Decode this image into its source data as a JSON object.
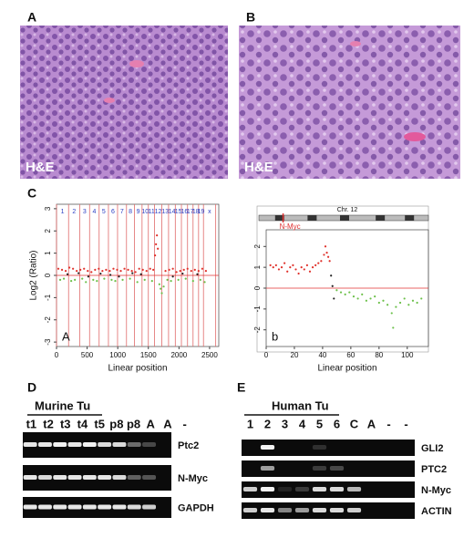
{
  "panels": {
    "A": {
      "label": "A",
      "caption": "H&E"
    },
    "B": {
      "label": "B",
      "caption": "H&E"
    },
    "D": {
      "label": "D",
      "group": "Murine Tu",
      "lanes": [
        "t1",
        "t2",
        "t3",
        "t4",
        "t5",
        "p8",
        "p8",
        "A",
        "A",
        "-"
      ],
      "rows": [
        {
          "label": "Ptc2",
          "intensity": [
            0.9,
            0.9,
            0.95,
            0.9,
            0.95,
            0.85,
            0.85,
            0.4,
            0.25,
            0
          ]
        },
        {
          "label": "N-Myc",
          "intensity": [
            0.9,
            0.85,
            0.9,
            0.9,
            0.9,
            0.9,
            0.85,
            0.35,
            0.3,
            0
          ]
        },
        {
          "label": "GAPDH",
          "intensity": [
            0.9,
            0.9,
            0.9,
            0.9,
            0.9,
            0.9,
            0.9,
            0.85,
            0.8,
            0
          ]
        }
      ]
    },
    "E": {
      "label": "E",
      "group": "Human Tu",
      "lanes": [
        "1",
        "2",
        "3",
        "4",
        "5",
        "6",
        "C",
        "A",
        "-",
        "-"
      ],
      "rows": [
        {
          "label": "GLI2",
          "intensity": [
            0,
            0.95,
            0,
            0,
            0.15,
            0,
            0,
            0,
            0,
            0
          ]
        },
        {
          "label": "PTC2",
          "intensity": [
            0,
            0.6,
            0,
            0,
            0.2,
            0.25,
            0,
            0,
            0,
            0
          ]
        },
        {
          "label": "N-Myc",
          "intensity": [
            0.8,
            0.95,
            0.1,
            0.2,
            0.85,
            0.85,
            0.7,
            0,
            0,
            0
          ]
        },
        {
          "label": "ACTIN",
          "intensity": [
            0.8,
            0.9,
            0.5,
            0.6,
            0.85,
            0.85,
            0.8,
            0,
            0,
            0
          ]
        }
      ]
    }
  },
  "chart_data": [
    {
      "type": "scatter",
      "panel_label": "C",
      "corner_label": "A",
      "ylabel": "Log2 (Ratio)",
      "xlabel": "Linear position",
      "xlim": [
        0,
        2650
      ],
      "ylim": [
        -3.2,
        3.2
      ],
      "xticks": [
        0,
        500,
        1000,
        1500,
        2000,
        2500
      ],
      "yticks": [
        -3,
        -2,
        -1,
        0,
        1,
        2,
        3
      ],
      "regions": {
        "labels": [
          "1",
          "2",
          "3",
          "4",
          "5",
          "6",
          "7",
          "8",
          "9",
          "10",
          "11",
          "12",
          "13",
          "14",
          "15",
          "16",
          "17",
          "18",
          "19",
          "x"
        ],
        "bounds": [
          0,
          197,
          378,
          540,
          696,
          848,
          997,
          1143,
          1272,
          1397,
          1500,
          1600,
          1720,
          1830,
          1940,
          2040,
          2140,
          2230,
          2320,
          2400,
          2600
        ],
        "label_color": "#2b3fc4",
        "line_color": "#e06a6a"
      },
      "series": [
        {
          "color": "#e0302a",
          "x": [
            30,
            90,
            150,
            210,
            270,
            330,
            390,
            450,
            510,
            570,
            630,
            690,
            750,
            810,
            870,
            930,
            990,
            1050,
            1110,
            1170,
            1230,
            1290,
            1350,
            1410,
            1470,
            1530,
            1580,
            1610,
            1625,
            1640,
            1655,
            1780,
            1840,
            1900,
            1960,
            2020,
            2080,
            2140,
            2200,
            2260,
            2320,
            2380,
            2440
          ],
          "values": [
            0.3,
            0.25,
            0.2,
            0.35,
            0.3,
            0.2,
            0.25,
            0.3,
            0.2,
            0.15,
            0.25,
            0.3,
            0.2,
            0.25,
            0.2,
            0.3,
            0.25,
            0.2,
            0.3,
            0.25,
            0.2,
            0.15,
            0.3,
            0.25,
            0.2,
            0.3,
            0.25,
            0.9,
            1.4,
            1.8,
            1.2,
            0.2,
            0.25,
            0.3,
            0.15,
            0.2,
            0.25,
            0.3,
            0.2,
            0.25,
            0.2,
            0.3,
            0.2
          ]
        },
        {
          "color": "#6cc04a",
          "x": [
            60,
            120,
            240,
            300,
            420,
            480,
            600,
            660,
            780,
            900,
            960,
            1080,
            1200,
            1320,
            1440,
            1560,
            1680,
            1700,
            1720,
            1750,
            1810,
            1870,
            1990,
            2110,
            2230,
            2350,
            2420
          ],
          "values": [
            -0.2,
            -0.15,
            -0.25,
            -0.2,
            -0.15,
            -0.3,
            -0.2,
            -0.25,
            -0.15,
            -0.2,
            -0.25,
            -0.2,
            -0.15,
            -0.3,
            -0.2,
            -0.25,
            -0.4,
            -0.6,
            -0.8,
            -0.5,
            -0.2,
            -0.25,
            -0.2,
            -0.15,
            -0.25,
            -0.2,
            -0.3
          ]
        },
        {
          "color": "#222222",
          "x": [
            180,
            360,
            520,
            720,
            880,
            1020,
            1240,
            1380,
            1900,
            2060,
            2300
          ],
          "values": [
            0.05,
            0.1,
            -0.05,
            0.08,
            0.02,
            -0.05,
            0.1,
            0.05,
            -0.05,
            0.08,
            0.05
          ]
        }
      ]
    },
    {
      "type": "scatter",
      "title": "Chr. 12",
      "annotation": {
        "text": "N-Myc",
        "x": 12
      },
      "corner_label": "b",
      "xlabel": "Linear position",
      "xlim": [
        0,
        115
      ],
      "ylim": [
        -2.8,
        2.8
      ],
      "xticks": [
        0,
        20,
        40,
        60,
        80,
        100
      ],
      "yticks": [
        -2,
        -1,
        0,
        1,
        2
      ],
      "series": [
        {
          "color": "#e0302a",
          "x": [
            3,
            5,
            7,
            9,
            11,
            13,
            15,
            17,
            19,
            21,
            23,
            25,
            27,
            29,
            31,
            33,
            35,
            37,
            39,
            41,
            42,
            43,
            44,
            45
          ],
          "values": [
            1.1,
            1.0,
            1.1,
            0.9,
            1.0,
            1.2,
            0.8,
            1.0,
            1.1,
            0.9,
            0.7,
            1.0,
            0.9,
            1.1,
            0.8,
            1.0,
            1.1,
            1.2,
            1.3,
            1.6,
            2.0,
            1.7,
            1.5,
            1.3
          ]
        },
        {
          "color": "#6cc04a",
          "x": [
            50,
            53,
            56,
            59,
            62,
            65,
            68,
            71,
            74,
            77,
            80,
            83,
            86,
            89,
            90,
            92,
            95,
            98,
            101,
            104,
            107,
            110
          ],
          "values": [
            -0.1,
            -0.2,
            -0.3,
            -0.2,
            -0.4,
            -0.5,
            -0.3,
            -0.6,
            -0.5,
            -0.4,
            -0.7,
            -0.6,
            -0.8,
            -1.2,
            -1.9,
            -0.9,
            -0.7,
            -0.5,
            -0.8,
            -0.6,
            -0.7,
            -0.5
          ]
        },
        {
          "color": "#222222",
          "x": [
            46,
            47,
            48
          ],
          "values": [
            0.6,
            0.1,
            -0.5
          ]
        }
      ]
    }
  ]
}
